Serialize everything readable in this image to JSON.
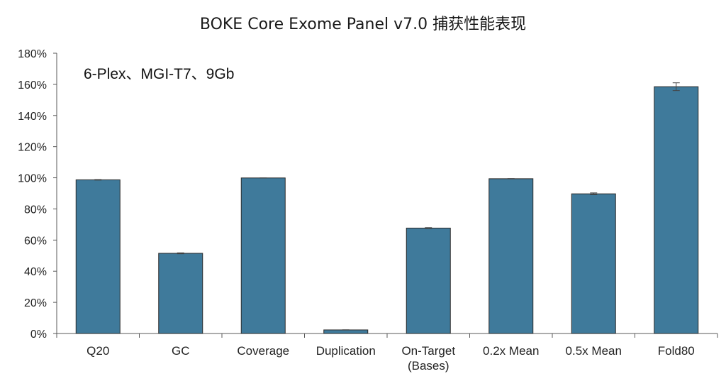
{
  "chart_data": {
    "type": "bar",
    "title": "BOKE Core Exome Panel v7.0 捕获性能表现",
    "annotation": "6-Plex、MGI-T7、9Gb",
    "categories": [
      "Q20",
      "GC",
      "Coverage",
      "Duplication",
      "On-Target\n(Bases)",
      "0.2x Mean",
      "0.5x Mean",
      "Fold80"
    ],
    "series": [
      {
        "values": [
          98.7,
          51.5,
          99.9,
          2.3,
          67.7,
          99.4,
          89.7,
          158.5
        ],
        "errors": [
          0.2,
          0.3,
          0.05,
          0.1,
          0.3,
          0.1,
          0.6,
          2.5
        ]
      }
    ],
    "ylim": [
      0,
      180
    ],
    "yticks": [
      0,
      20,
      40,
      60,
      80,
      100,
      120,
      140,
      160,
      180
    ],
    "ytick_suffix": "%",
    "xlabel": "",
    "ylabel": "",
    "grid": false,
    "legend": "none",
    "bar_color": "#3f7a9b",
    "bar_edge_color": "#2a2a2a",
    "axis_color": "#595959"
  }
}
